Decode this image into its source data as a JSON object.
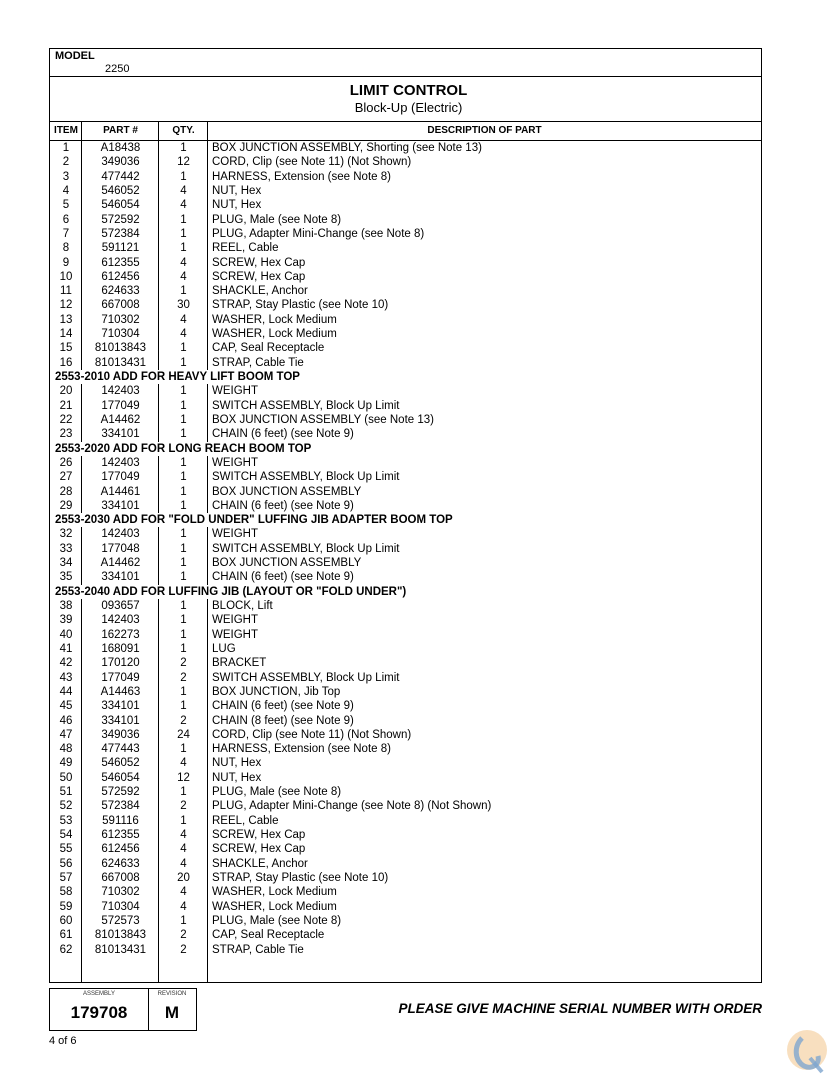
{
  "model": {
    "label": "MODEL",
    "value": "2250"
  },
  "title": "LIMIT CONTROL",
  "subtitle": "Block-Up (Electric)",
  "columns": {
    "item": "ITEM",
    "part": "PART #",
    "qty": "QTY.",
    "desc": "DESCRIPTION OF PART"
  },
  "rows": [
    {
      "item": "1",
      "part": "A18438",
      "qty": "1",
      "desc": "BOX JUNCTION ASSEMBLY, Shorting (see Note 13)"
    },
    {
      "item": "2",
      "part": "349036",
      "qty": "12",
      "desc": "CORD, Clip (see Note 11) (Not Shown)"
    },
    {
      "item": "3",
      "part": "477442",
      "qty": "1",
      "desc": "HARNESS, Extension (see Note 8)"
    },
    {
      "item": "4",
      "part": "546052",
      "qty": "4",
      "desc": "NUT, Hex"
    },
    {
      "item": "5",
      "part": "546054",
      "qty": "4",
      "desc": "NUT, Hex"
    },
    {
      "item": "6",
      "part": "572592",
      "qty": "1",
      "desc": "PLUG, Male  (see Note 8)"
    },
    {
      "item": "7",
      "part": "572384",
      "qty": "1",
      "desc": "PLUG, Adapter Mini-Change (see Note 8)"
    },
    {
      "item": "8",
      "part": "591121",
      "qty": "1",
      "desc": "REEL, Cable"
    },
    {
      "item": "9",
      "part": "612355",
      "qty": "4",
      "desc": "SCREW, Hex Cap"
    },
    {
      "item": "10",
      "part": "612456",
      "qty": "4",
      "desc": "SCREW, Hex Cap"
    },
    {
      "item": "11",
      "part": "624633",
      "qty": "1",
      "desc": "SHACKLE, Anchor"
    },
    {
      "item": "12",
      "part": "667008",
      "qty": "30",
      "desc": "STRAP, Stay Plastic (see Note 10)"
    },
    {
      "item": "13",
      "part": "710302",
      "qty": "4",
      "desc": "WASHER, Lock Medium"
    },
    {
      "item": "14",
      "part": "710304",
      "qty": "4",
      "desc": "WASHER, Lock Medium"
    },
    {
      "item": "15",
      "part": "81013843",
      "qty": "1",
      "desc": "CAP, Seal Receptacle"
    },
    {
      "item": "16",
      "part": "81013431",
      "qty": "1",
      "desc": "STRAP, Cable Tie"
    },
    {
      "section": "2553-2010 ADD FOR HEAVY LIFT BOOM TOP"
    },
    {
      "item": "20",
      "part": "142403",
      "qty": "1",
      "desc": "WEIGHT"
    },
    {
      "item": "21",
      "part": "177049",
      "qty": "1",
      "desc": "SWITCH ASSEMBLY, Block Up Limit"
    },
    {
      "item": "22",
      "part": "A14462",
      "qty": "1",
      "desc": "BOX JUNCTION ASSEMBLY (see Note 13)"
    },
    {
      "item": "23",
      "part": "334101",
      "qty": "1",
      "desc": "CHAIN (6 feet) (see Note 9)"
    },
    {
      "section": "2553-2020 ADD FOR LONG REACH BOOM TOP"
    },
    {
      "item": "26",
      "part": "142403",
      "qty": "1",
      "desc": "WEIGHT"
    },
    {
      "item": "27",
      "part": "177049",
      "qty": "1",
      "desc": "SWITCH ASSEMBLY, Block Up Limit"
    },
    {
      "item": "28",
      "part": "A14461",
      "qty": "1",
      "desc": "BOX JUNCTION ASSEMBLY"
    },
    {
      "item": "29",
      "part": "334101",
      "qty": "1",
      "desc": "CHAIN (6 feet) (see Note 9)"
    },
    {
      "section": "2553-2030 ADD FOR \"FOLD UNDER\" LUFFING JIB ADAPTER BOOM TOP"
    },
    {
      "item": "32",
      "part": "142403",
      "qty": "1",
      "desc": "WEIGHT"
    },
    {
      "item": "33",
      "part": "177048",
      "qty": "1",
      "desc": "SWITCH ASSEMBLY, Block Up Limit"
    },
    {
      "item": "34",
      "part": "A14462",
      "qty": "1",
      "desc": "BOX JUNCTION ASSEMBLY"
    },
    {
      "item": "35",
      "part": "334101",
      "qty": "1",
      "desc": "CHAIN (6 feet) (see Note 9)"
    },
    {
      "section": "2553-2040 ADD FOR LUFFING JIB (LAYOUT OR \"FOLD UNDER\")"
    },
    {
      "item": "38",
      "part": "093657",
      "qty": "1",
      "desc": "BLOCK, Lift"
    },
    {
      "item": "39",
      "part": "142403",
      "qty": "1",
      "desc": "WEIGHT"
    },
    {
      "item": "40",
      "part": "162273",
      "qty": "1",
      "desc": "WEIGHT"
    },
    {
      "item": "41",
      "part": "168091",
      "qty": "1",
      "desc": "LUG"
    },
    {
      "item": "42",
      "part": "170120",
      "qty": "2",
      "desc": "BRACKET"
    },
    {
      "item": "43",
      "part": "177049",
      "qty": "2",
      "desc": "SWITCH ASSEMBLY, Block Up Limit"
    },
    {
      "item": "44",
      "part": "A14463",
      "qty": "1",
      "desc": "BOX JUNCTION, Jib Top"
    },
    {
      "item": "45",
      "part": "334101",
      "qty": "1",
      "desc": "CHAIN (6 feet) (see Note 9)"
    },
    {
      "item": "46",
      "part": "334101",
      "qty": "2",
      "desc": "CHAIN (8 feet) (see Note 9)"
    },
    {
      "item": "47",
      "part": "349036",
      "qty": "24",
      "desc": "CORD, Clip (see Note 11) (Not Shown)"
    },
    {
      "item": "48",
      "part": "477443",
      "qty": "1",
      "desc": "HARNESS, Extension  (see Note 8)"
    },
    {
      "item": "49",
      "part": "546052",
      "qty": "4",
      "desc": "NUT, Hex"
    },
    {
      "item": "50",
      "part": "546054",
      "qty": "12",
      "desc": "NUT, Hex"
    },
    {
      "item": "51",
      "part": "572592",
      "qty": "1",
      "desc": "PLUG, Male  (see Note 8)"
    },
    {
      "item": "52",
      "part": "572384",
      "qty": "2",
      "desc": "PLUG, Adapter Mini-Change (see Note 8) (Not Shown)"
    },
    {
      "item": "53",
      "part": "591116",
      "qty": "1",
      "desc": "REEL, Cable"
    },
    {
      "item": "54",
      "part": "612355",
      "qty": "4",
      "desc": "SCREW, Hex Cap"
    },
    {
      "item": "55",
      "part": "612456",
      "qty": "4",
      "desc": "SCREW, Hex Cap"
    },
    {
      "item": "56",
      "part": "624633",
      "qty": "4",
      "desc": "SHACKLE, Anchor"
    },
    {
      "item": "57",
      "part": "667008",
      "qty": "20",
      "desc": "STRAP, Stay Plastic (see Note 10)"
    },
    {
      "item": "58",
      "part": "710302",
      "qty": "4",
      "desc": "WASHER, Lock Medium"
    },
    {
      "item": "59",
      "part": "710304",
      "qty": "4",
      "desc": "WASHER, Lock Medium"
    },
    {
      "item": "60",
      "part": "572573",
      "qty": "1",
      "desc": "PLUG, Male  (see Note 8)"
    },
    {
      "item": "61",
      "part": "81013843",
      "qty": "2",
      "desc": "CAP, Seal Receptacle"
    },
    {
      "item": "62",
      "part": "81013431",
      "qty": "2",
      "desc": "STRAP, Cable Tie"
    }
  ],
  "footer": {
    "assembly_label": "ASSEMBLY",
    "assembly": "179708",
    "revision_label": "REVISION",
    "revision": "M",
    "notice": "PLEASE GIVE MACHINE SERIAL NUMBER WITH ORDER",
    "page": "4 of 6"
  },
  "logo_icon": "watermark-logo-icon"
}
